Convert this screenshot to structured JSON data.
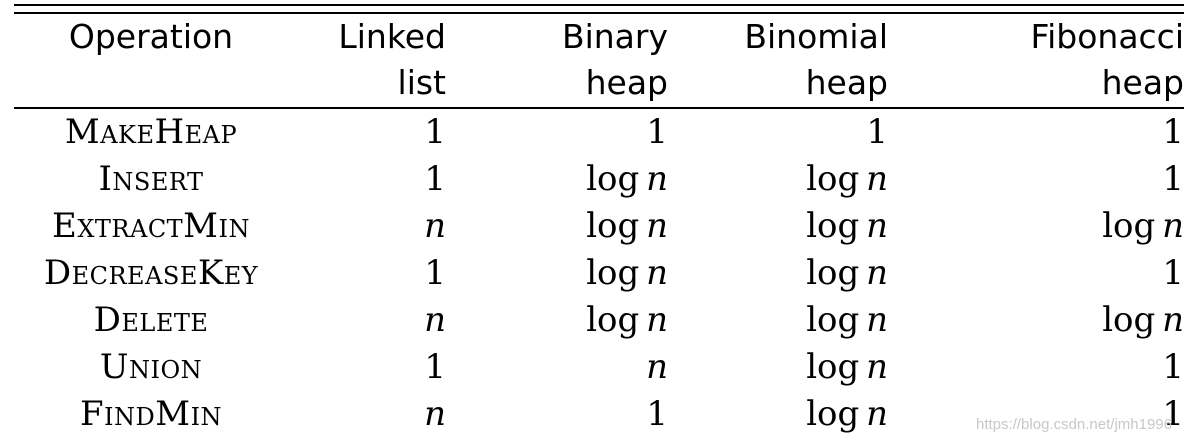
{
  "table": {
    "headers": [
      {
        "line1": "Operation",
        "line2": ""
      },
      {
        "line1": "Linked",
        "line2": "list"
      },
      {
        "line1": "Binary",
        "line2": "heap"
      },
      {
        "line1": "Binomial",
        "line2": "heap"
      },
      {
        "line1": "Fibonacci",
        "line2": "heap"
      }
    ],
    "rows": [
      {
        "op": "MakeHeap",
        "cells": [
          "1",
          "1",
          "1",
          "1"
        ]
      },
      {
        "op": "Insert",
        "cells": [
          "1",
          "log n",
          "log n",
          "1"
        ]
      },
      {
        "op": "ExtractMin",
        "cells": [
          "n",
          "log n",
          "log n",
          "log n"
        ]
      },
      {
        "op": "DecreaseKey",
        "cells": [
          "1",
          "log n",
          "log n",
          "1"
        ]
      },
      {
        "op": "Delete",
        "cells": [
          "n",
          "log n",
          "log n",
          "log n"
        ]
      },
      {
        "op": "Union",
        "cells": [
          "1",
          "n",
          "log n",
          "1"
        ]
      },
      {
        "op": "FindMin",
        "cells": [
          "n",
          "1",
          "log n",
          "1"
        ]
      }
    ]
  },
  "watermark": "https://blog.csdn.net/jmh1996"
}
